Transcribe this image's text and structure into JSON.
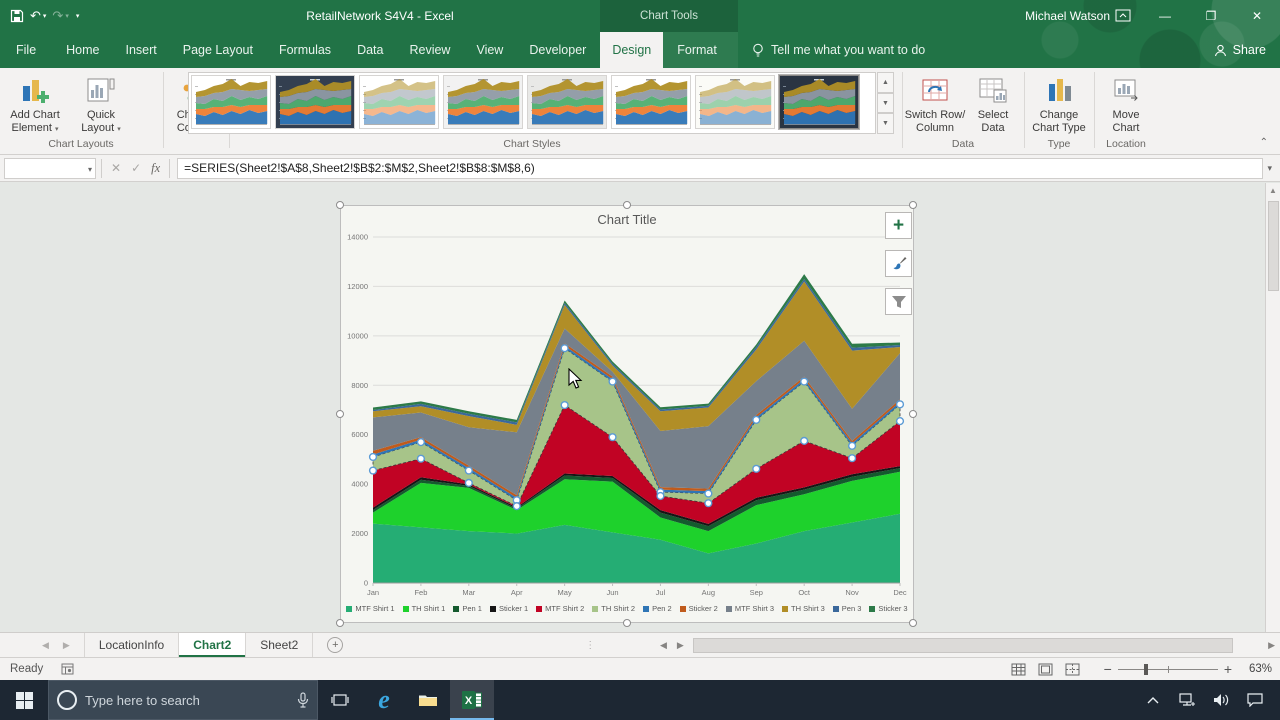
{
  "title_bar": {
    "title": "RetailNetwork S4V4  -  Excel",
    "contextual_label": "Chart Tools",
    "user": "Michael Watson"
  },
  "ribbon_tabs": [
    "File",
    "Home",
    "Insert",
    "Page Layout",
    "Formulas",
    "Data",
    "Review",
    "View",
    "Developer",
    "Design",
    "Format"
  ],
  "active_tab": "Design",
  "tellme_label": "Tell me what you want to do",
  "share_label": "Share",
  "ribbon": {
    "buttons": {
      "add_chart_element": {
        "l1": "Add Chart",
        "l2": "Element"
      },
      "quick_layout": {
        "l1": "Quick",
        "l2": "Layout"
      },
      "change_colors": {
        "l1": "Change",
        "l2": "Colors"
      },
      "switch_row_column": {
        "l1": "Switch Row/",
        "l2": "Column"
      },
      "select_data": {
        "l1": "Select",
        "l2": "Data"
      },
      "change_chart_type": {
        "l1": "Change",
        "l2": "Chart Type"
      },
      "move_chart": {
        "l1": "Move",
        "l2": "Chart"
      }
    },
    "groups": {
      "chart_layouts": "Chart Layouts",
      "chart_styles": "Chart Styles",
      "data": "Data",
      "type": "Type",
      "location": "Location"
    },
    "gallery_styles": [
      "chart-style-light",
      "chart-style-dark-blue",
      "chart-style-sketch",
      "chart-style-light-gray",
      "chart-style-pale",
      "chart-style-colorful",
      "chart-style-hatch",
      "chart-style-dark-navy"
    ],
    "gallery_selected_index": 7
  },
  "formula_bar": {
    "name_box": "",
    "formula": "=SERIES(Sheet2!$A$8,Sheet2!$B$2:$M$2,Sheet2!$B$8:$M$8,6)"
  },
  "chart_data": {
    "type": "area",
    "stacked": true,
    "title": "Chart Title",
    "categories": [
      "Jan",
      "Feb",
      "Mar",
      "Apr",
      "May",
      "Jun",
      "Jul",
      "Aug",
      "Sep",
      "Oct",
      "Nov",
      "Dec"
    ],
    "ylim": [
      0,
      14000
    ],
    "ytick": 2000,
    "grid": true,
    "legend_position": "bottom",
    "selected_series": "TH Shirt 2",
    "series": [
      {
        "name": "MTF Shirt 1",
        "color": "#25ad74",
        "values": [
          2400,
          2250,
          2100,
          2000,
          2350,
          2050,
          1750,
          1200,
          1600,
          2100,
          2450,
          2800
        ]
      },
      {
        "name": "TH Shirt 1",
        "color": "#1ed12c",
        "values": [
          450,
          1800,
          1750,
          950,
          1850,
          2050,
          900,
          900,
          1550,
          1490,
          1680,
          1700
        ]
      },
      {
        "name": "Pen 1",
        "color": "#145a2e",
        "values": [
          100,
          130,
          80,
          60,
          150,
          150,
          200,
          200,
          200,
          190,
          170,
          150
        ]
      },
      {
        "name": "Sticker 1",
        "color": "#161616",
        "values": [
          100,
          100,
          60,
          50,
          80,
          80,
          100,
          90,
          100,
          90,
          100,
          80
        ]
      },
      {
        "name": "MTF Shirt 2",
        "color": "#c10324",
        "values": [
          1500,
          750,
          60,
          50,
          2770,
          1570,
          570,
          840,
          1170,
          1880,
          650,
          1820
        ]
      },
      {
        "name": "TH Shirt 2",
        "color": "#a7c489",
        "values": [
          550,
          670,
          500,
          240,
          2300,
          2250,
          160,
          390,
          1980,
          2400,
          500,
          680
        ]
      },
      {
        "name": "Pen 2",
        "color": "#2f75b5",
        "values": [
          100,
          100,
          100,
          100,
          100,
          100,
          100,
          100,
          100,
          100,
          100,
          100
        ]
      },
      {
        "name": "Sticker 2",
        "color": "#c05b1c",
        "values": [
          150,
          100,
          100,
          100,
          100,
          100,
          100,
          100,
          100,
          100,
          100,
          100
        ]
      },
      {
        "name": "MTF Shirt 3",
        "color": "#76808b",
        "values": [
          1350,
          1000,
          1550,
          2550,
          600,
          200,
          2270,
          2530,
          1370,
          1450,
          1300,
          1870
        ]
      },
      {
        "name": "TH Shirt 3",
        "color": "#b18e27",
        "values": [
          250,
          250,
          450,
          300,
          950,
          250,
          800,
          750,
          1280,
          2400,
          2350,
          250
        ]
      },
      {
        "name": "Pen 3",
        "color": "#3a689b",
        "values": [
          50,
          100,
          100,
          100,
          80,
          70,
          70,
          70,
          100,
          100,
          120,
          80
        ]
      },
      {
        "name": "Sticker 3",
        "color": "#2c7a48",
        "values": [
          100,
          100,
          100,
          100,
          100,
          90,
          90,
          90,
          100,
          200,
          160,
          100
        ]
      }
    ]
  },
  "sheet_tabs": {
    "tabs": [
      "LocationInfo",
      "Chart2",
      "Sheet2"
    ],
    "active": "Chart2"
  },
  "status_bar": {
    "mode": "Ready",
    "zoom_level": "63%"
  },
  "taskbar": {
    "search_placeholder": "Type here to search"
  },
  "colors": {
    "accent_green": "#217346",
    "selection_blue": "#5b9bd5"
  }
}
